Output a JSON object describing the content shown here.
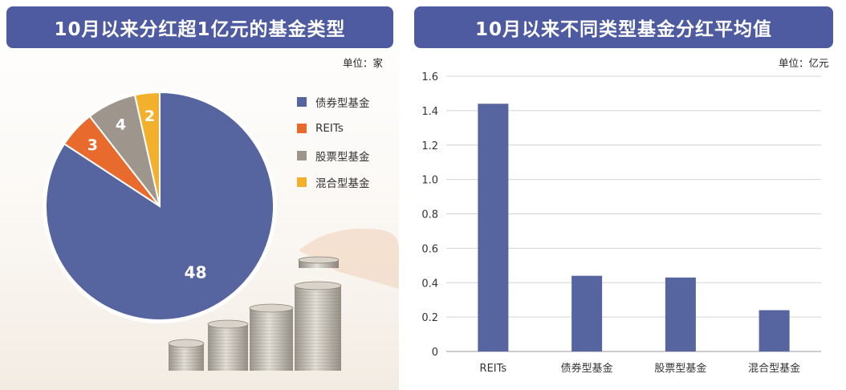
{
  "left": {
    "title": "10月以来分红超1亿元的基金类型",
    "unit": "单位：家"
  },
  "right": {
    "title": "10月以来不同类型基金分红平均值",
    "unit": "单位：亿元"
  },
  "colors": {
    "title_bg": "#4f5ba0",
    "bond": "#56649f",
    "reits": "#e86a2c",
    "stock": "#9e958d",
    "mixed": "#f3b02c",
    "bar": "#56649f",
    "grid": "#d4d4d4"
  },
  "chart_data": [
    {
      "type": "pie",
      "title": "10月以来分红超1亿元的基金类型",
      "unit": "单位：家",
      "categories": [
        "债券型基金",
        "REITs",
        "股票型基金",
        "混合型基金"
      ],
      "values": [
        48,
        3,
        4,
        2
      ],
      "colors": [
        "#56649f",
        "#e86a2c",
        "#9e958d",
        "#f3b02c"
      ],
      "legend_position": "right"
    },
    {
      "type": "bar",
      "title": "10月以来不同类型基金分红平均值",
      "unit": "单位：亿元",
      "categories": [
        "REITs",
        "债券型基金",
        "股票型基金",
        "混合型基金"
      ],
      "values": [
        1.44,
        0.44,
        0.43,
        0.24
      ],
      "ylim": [
        0,
        1.6
      ],
      "yticks": [
        "0",
        "0.2",
        "0.4",
        "0.6",
        "0.8",
        "1.0",
        "1.2",
        "1.4",
        "1.6"
      ],
      "grid": true
    }
  ]
}
